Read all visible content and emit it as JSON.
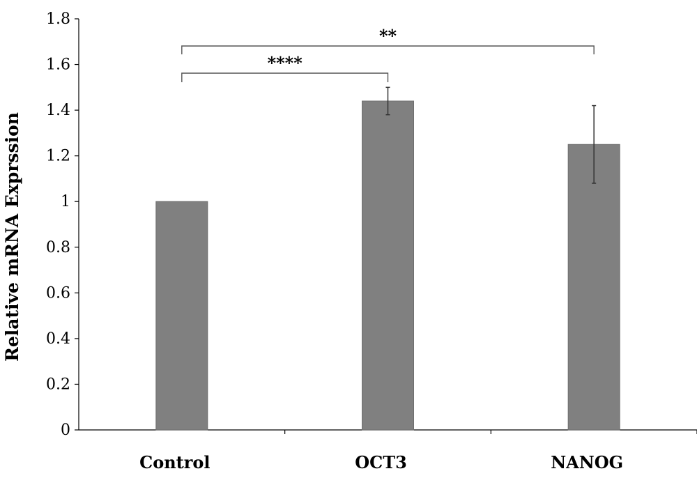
{
  "chart_data": {
    "type": "bar",
    "title": "",
    "xlabel": "",
    "ylabel": "Relative mRNA Exprssion",
    "categories": [
      "Control",
      "OCT3",
      "NANOG"
    ],
    "values": [
      1.0,
      1.44,
      1.25
    ],
    "error": [
      {
        "low": 1.0,
        "high": 1.0
      },
      {
        "low": 1.38,
        "high": 1.5
      },
      {
        "low": 1.08,
        "high": 1.42
      }
    ],
    "ylim": [
      0,
      1.8
    ],
    "yticks": [
      0,
      0.2,
      0.4,
      0.6,
      0.8,
      1,
      1.2,
      1.4,
      1.6,
      1.8
    ],
    "ytick_labels": [
      "0",
      "0.2",
      "0.4",
      "0.6",
      "0.8",
      "1",
      "1.2",
      "1.4",
      "1.6",
      "1.8"
    ],
    "grid": false,
    "legend": "none",
    "significance": [
      {
        "from": "Control",
        "to": "OCT3",
        "label": "****"
      },
      {
        "from": "Control",
        "to": "NANOG",
        "label": "**"
      }
    ],
    "colors": {
      "bar": "#808080",
      "bar_edge": "#6e6e6e",
      "axis": "#000000",
      "error": "#333333",
      "bracket": "#555555"
    }
  }
}
